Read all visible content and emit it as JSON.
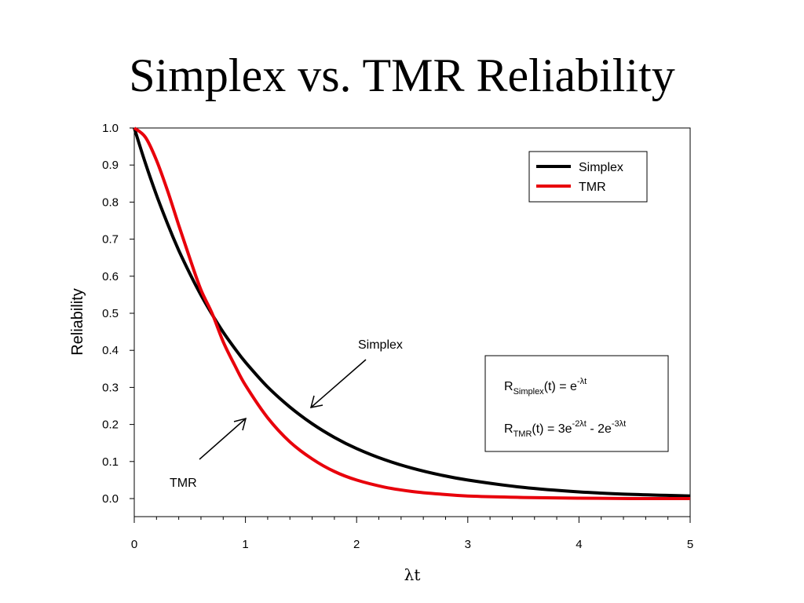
{
  "slide": {
    "title": "Simplex vs. TMR Reliability"
  },
  "chart_data": {
    "type": "line",
    "title": "",
    "xlabel": "λt",
    "ylabel": "Reliability",
    "xlim": [
      0,
      5
    ],
    "ylim": [
      -0.05,
      1.0
    ],
    "x_ticks": [
      "0",
      "1",
      "2",
      "3",
      "4",
      "5"
    ],
    "x_tick_values": [
      0,
      1,
      2,
      3,
      4,
      5
    ],
    "y_ticks": [
      "0.0",
      "0.1",
      "0.2",
      "0.3",
      "0.4",
      "0.5",
      "0.6",
      "0.7",
      "0.8",
      "0.9",
      "1.0"
    ],
    "y_tick_values": [
      0,
      0.1,
      0.2,
      0.3,
      0.4,
      0.5,
      0.6,
      0.7,
      0.8,
      0.9,
      1.0
    ],
    "grid": false,
    "legend_position": "top-right",
    "series": [
      {
        "name": "Simplex",
        "color": "#000000",
        "x": [
          0,
          0.1,
          0.2,
          0.3,
          0.4,
          0.5,
          0.6,
          0.7,
          0.8,
          0.9,
          1.0,
          1.2,
          1.4,
          1.6,
          1.8,
          2.0,
          2.25,
          2.5,
          2.75,
          3.0,
          3.5,
          4.0,
          4.5,
          5.0
        ],
        "values": [
          1.0,
          0.905,
          0.819,
          0.741,
          0.67,
          0.607,
          0.549,
          0.497,
          0.449,
          0.407,
          0.368,
          0.301,
          0.247,
          0.202,
          0.165,
          0.135,
          0.105,
          0.082,
          0.064,
          0.05,
          0.03,
          0.018,
          0.011,
          0.007
        ]
      },
      {
        "name": "TMR",
        "color": "#e8000b",
        "x": [
          0,
          0.1,
          0.2,
          0.3,
          0.4,
          0.5,
          0.6,
          0.7,
          0.8,
          0.9,
          1.0,
          1.2,
          1.4,
          1.6,
          1.8,
          2.0,
          2.25,
          2.5,
          2.75,
          3.0,
          3.5,
          4.0,
          4.5,
          5.0
        ],
        "values": [
          1.0,
          0.975,
          0.913,
          0.83,
          0.738,
          0.648,
          0.563,
          0.5,
          0.423,
          0.362,
          0.306,
          0.218,
          0.153,
          0.107,
          0.073,
          0.05,
          0.031,
          0.019,
          0.012,
          0.007,
          0.003,
          0.001,
          0.0,
          0.0
        ]
      }
    ],
    "annotations": [
      {
        "id": "simplex",
        "text": "Simplex"
      },
      {
        "id": "tmr",
        "text": "TMR"
      }
    ],
    "formula_box": {
      "line1": {
        "base": "R",
        "sub": "Simplex",
        "mid": "(t) = e",
        "sup": "-λt",
        "tail": ""
      },
      "line2": {
        "base": "R",
        "sub": "TMR",
        "mid": "(t) = 3e",
        "sup": "-2λt",
        "mid2": " - 2e",
        "sup2": "-3λt"
      }
    }
  }
}
